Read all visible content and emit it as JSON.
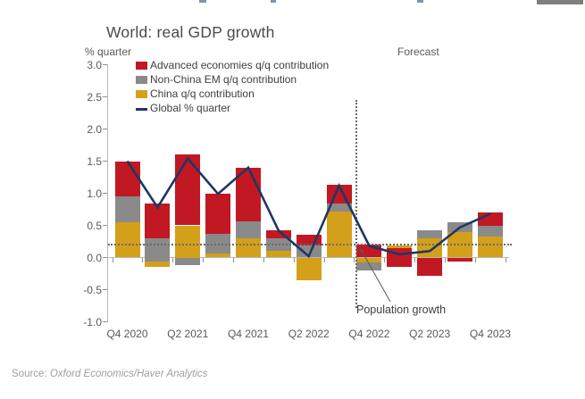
{
  "chart_data": {
    "type": "bar+line",
    "title": "World: real GDP growth",
    "unit_label": "% quarter",
    "forecast_label": "Forecast",
    "annotation_label": "Population growth",
    "population_growth_level": 0.2,
    "forecast_start_index": 8,
    "ylim": [
      -1.0,
      3.0
    ],
    "grid": "off",
    "legend_position": "top-left-inside",
    "colors": {
      "advanced": "#c11823",
      "non_china_em": "#8a8a8a",
      "china": "#d4a019",
      "global": "#1e3764"
    },
    "legend": [
      {
        "series": "advanced",
        "swatch": "box",
        "label": "Advanced economies q/q contribution"
      },
      {
        "series": "non_china_em",
        "swatch": "box",
        "label": "Non-China EM q/q contribution"
      },
      {
        "series": "china",
        "swatch": "box",
        "label": "China q/q contribution"
      },
      {
        "series": "global",
        "swatch": "line",
        "label": "Global % quarter"
      }
    ],
    "y_ticks": [
      {
        "value": 3.0,
        "label": "3.0"
      },
      {
        "value": 2.5,
        "label": "2.5"
      },
      {
        "value": 2.0,
        "label": "2.0"
      },
      {
        "value": 1.5,
        "label": "1.5"
      },
      {
        "value": 1.0,
        "label": "1.0"
      },
      {
        "value": 0.5,
        "label": "0.5"
      },
      {
        "value": 0.0,
        "label": "0.0"
      },
      {
        "value": -0.5,
        "label": "-0.5"
      },
      {
        "value": -1.0,
        "label": "-1.0"
      }
    ],
    "x_tick_labels": [
      {
        "bar": 0,
        "label": "Q4 2020"
      },
      {
        "bar": 2,
        "label": "Q2 2021"
      },
      {
        "bar": 4,
        "label": "Q4 2021"
      },
      {
        "bar": 6,
        "label": "Q2 2022"
      },
      {
        "bar": 8,
        "label": "Q4 2022"
      },
      {
        "bar": 10,
        "label": "Q2 2023"
      },
      {
        "bar": 12,
        "label": "Q4 2023"
      }
    ],
    "bars": [
      {
        "quarter": "Q4 2020",
        "segments": [
          {
            "series": "china",
            "from": 0,
            "to": 0.55
          },
          {
            "series": "non_china_em",
            "from": 0.55,
            "to": 0.95
          },
          {
            "series": "advanced",
            "from": 0.95,
            "to": 1.5
          }
        ]
      },
      {
        "quarter": "Q1 2021",
        "segments": [
          {
            "series": "china",
            "from": -0.15,
            "to": -0.06
          },
          {
            "series": "non_china_em",
            "from": -0.06,
            "to": 0.3
          },
          {
            "series": "advanced",
            "from": 0.3,
            "to": 0.84
          }
        ]
      },
      {
        "quarter": "Q2 2021",
        "segments": [
          {
            "series": "china",
            "from": 0,
            "to": 0.5
          },
          {
            "series": "non_china_em",
            "from": -0.12,
            "to": 0
          },
          {
            "series": "advanced",
            "from": 0.5,
            "to": 1.6
          }
        ]
      },
      {
        "quarter": "Q3 2021",
        "segments": [
          {
            "series": "china",
            "from": 0,
            "to": 0.06
          },
          {
            "series": "non_china_em",
            "from": 0.06,
            "to": 0.37
          },
          {
            "series": "advanced",
            "from": 0.37,
            "to": 1.0
          }
        ]
      },
      {
        "quarter": "Q4 2021",
        "segments": [
          {
            "series": "china",
            "from": 0,
            "to": 0.3
          },
          {
            "series": "non_china_em",
            "from": 0.3,
            "to": 0.56
          },
          {
            "series": "advanced",
            "from": 0.56,
            "to": 1.4
          }
        ]
      },
      {
        "quarter": "Q1 2022",
        "segments": [
          {
            "series": "china",
            "from": 0,
            "to": 0.1
          },
          {
            "series": "non_china_em",
            "from": 0.1,
            "to": 0.3
          },
          {
            "series": "advanced",
            "from": 0.3,
            "to": 0.43
          }
        ]
      },
      {
        "quarter": "Q2 2022",
        "segments": [
          {
            "series": "china",
            "from": -0.35,
            "to": 0
          },
          {
            "series": "non_china_em",
            "from": 0,
            "to": 0.19
          },
          {
            "series": "advanced",
            "from": 0.19,
            "to": 0.36
          }
        ]
      },
      {
        "quarter": "Q3 2022",
        "segments": [
          {
            "series": "china",
            "from": 0,
            "to": 0.72
          },
          {
            "series": "non_china_em",
            "from": 0.72,
            "to": 0.84
          },
          {
            "series": "advanced",
            "from": 0.84,
            "to": 1.13
          }
        ]
      },
      {
        "quarter": "Q4 2022",
        "segments": [
          {
            "series": "china",
            "from": -0.08,
            "to": 0
          },
          {
            "series": "non_china_em",
            "from": -0.2,
            "to": -0.08
          },
          {
            "series": "advanced",
            "from": 0,
            "to": 0.2
          }
        ]
      },
      {
        "quarter": "Q1 2023",
        "segments": [
          {
            "series": "china",
            "from": 0.14,
            "to": 0.19
          },
          {
            "series": "advanced",
            "from": -0.15,
            "to": 0.14
          }
        ]
      },
      {
        "quarter": "Q2 2023",
        "segments": [
          {
            "series": "china",
            "from": 0,
            "to": 0.3
          },
          {
            "series": "non_china_em",
            "from": 0.3,
            "to": 0.42
          },
          {
            "series": "advanced",
            "from": -0.28,
            "to": 0
          }
        ]
      },
      {
        "quarter": "Q3 2023",
        "segments": [
          {
            "series": "china",
            "from": 0,
            "to": 0.4
          },
          {
            "series": "non_china_em",
            "from": 0.4,
            "to": 0.55
          },
          {
            "series": "advanced",
            "from": -0.06,
            "to": 0
          }
        ]
      },
      {
        "quarter": "Q4 2023",
        "segments": [
          {
            "series": "china",
            "from": 0,
            "to": 0.33
          },
          {
            "series": "non_china_em",
            "from": 0.33,
            "to": 0.49
          },
          {
            "series": "advanced",
            "from": 0.49,
            "to": 0.7
          }
        ]
      }
    ],
    "line": {
      "name": "Global % quarter",
      "values": [
        1.5,
        0.78,
        1.54,
        0.99,
        1.4,
        0.42,
        0.02,
        1.12,
        0.18,
        0.05,
        0.1,
        0.47,
        0.68
      ]
    }
  },
  "source": {
    "prefix": "Source: ",
    "name": "Oxford Economics/Haver Analytics"
  }
}
